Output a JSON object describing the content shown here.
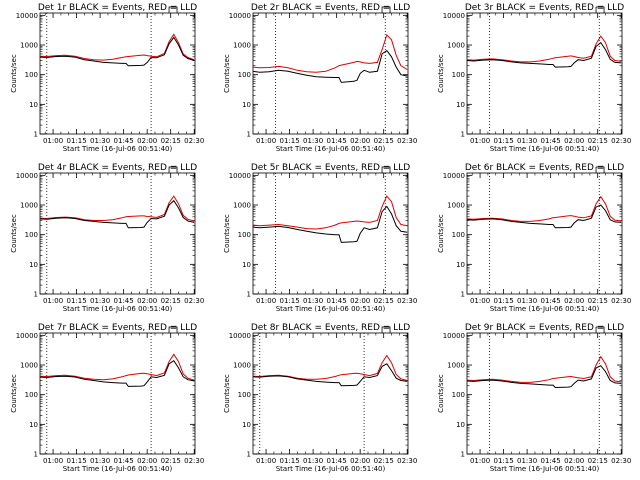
{
  "figure": {
    "colors": {
      "events": "#000000",
      "lld": "#e00000",
      "axis": "#000000",
      "background": "#ffffff"
    }
  },
  "chart_data": [
    {
      "type": "line",
      "title": "Det 1r BLACK = Events, RED = LLD",
      "xlabel": "Start Time (16-Jul-06 00:51:40)",
      "ylabel": "Counts/sec",
      "x_ticks": [
        "01:00",
        "01:15",
        "01:30",
        "01:45",
        "02:00",
        "02:15",
        "02:30"
      ],
      "y_ticks": [
        "1",
        "10",
        "100",
        "1000",
        "10000"
      ],
      "xlim_minutes": [
        51.67,
        150.5
      ],
      "ylim": [
        1,
        12000
      ],
      "yscale": "log",
      "vlines_minutes": [
        56,
        122.5
      ],
      "x_minutes": [
        51.67,
        56,
        62,
        68,
        74,
        80,
        86,
        92,
        98,
        104,
        106.5,
        108,
        116,
        118,
        120,
        122.5,
        126,
        131,
        134,
        137,
        140,
        143,
        146,
        150
      ],
      "series": [
        {
          "name": "LLD",
          "color": "#e00000",
          "values": [
            420,
            410,
            440,
            450,
            420,
            350,
            320,
            310,
            330,
            380,
            400,
            410,
            450,
            460,
            440,
            420,
            400,
            520,
            1300,
            2300,
            1200,
            500,
            380,
            320
          ]
        },
        {
          "name": "Events",
          "color": "#000000",
          "values": [
            390,
            380,
            410,
            420,
            390,
            320,
            290,
            260,
            250,
            240,
            240,
            200,
            205,
            210,
            260,
            380,
            370,
            470,
            1100,
            1800,
            1000,
            450,
            350,
            300
          ]
        }
      ]
    },
    {
      "type": "line",
      "title": "Det 2r BLACK = Events, RED = LLD",
      "xlabel": "Start Time (16-Jul-06 00:51:40)",
      "ylabel": "Counts/sec",
      "x_ticks": [
        "01:00",
        "01:15",
        "01:30",
        "01:45",
        "02:00",
        "02:15",
        "02:30"
      ],
      "y_ticks": [
        "1",
        "10",
        "100",
        "1000",
        "10000"
      ],
      "xlim_minutes": [
        51.67,
        150.5
      ],
      "ylim": [
        1,
        12000
      ],
      "yscale": "log",
      "vlines_minutes": [
        66,
        136
      ],
      "x_minutes": [
        51.67,
        56,
        62,
        68,
        74,
        80,
        86,
        92,
        98,
        104,
        106.5,
        108,
        116,
        118,
        120,
        122.5,
        126,
        131,
        134,
        137,
        140,
        143,
        146,
        150
      ],
      "series": [
        {
          "name": "LLD",
          "color": "#e00000",
          "values": [
            180,
            170,
            175,
            190,
            170,
            140,
            125,
            120,
            130,
            170,
            200,
            210,
            260,
            280,
            270,
            250,
            240,
            260,
            700,
            2200,
            1500,
            450,
            200,
            150
          ]
        },
        {
          "name": "Events",
          "color": "#000000",
          "values": [
            130,
            120,
            125,
            140,
            130,
            110,
            95,
            85,
            82,
            80,
            80,
            55,
            60,
            65,
            110,
            140,
            120,
            130,
            500,
            650,
            400,
            180,
            100,
            90
          ]
        }
      ]
    },
    {
      "type": "line",
      "title": "Det 3r BLACK = Events, RED = LLD",
      "xlabel": "Start Time (16-Jul-06 00:51:40)",
      "ylabel": "Counts/sec",
      "x_ticks": [
        "01:00",
        "01:15",
        "01:30",
        "01:45",
        "02:00",
        "02:15",
        "02:30"
      ],
      "y_ticks": [
        "1",
        "10",
        "100",
        "1000",
        "10000"
      ],
      "xlim_minutes": [
        51.67,
        150.5
      ],
      "ylim": [
        1,
        12000
      ],
      "yscale": "log",
      "vlines_minutes": [
        66,
        136
      ],
      "x_minutes": [
        51.67,
        56,
        62,
        68,
        74,
        80,
        86,
        92,
        98,
        104,
        106.5,
        108,
        116,
        118,
        120,
        122.5,
        126,
        131,
        134,
        137,
        140,
        143,
        146,
        150
      ],
      "series": [
        {
          "name": "LLD",
          "color": "#e00000",
          "values": [
            320,
            310,
            330,
            340,
            320,
            290,
            270,
            270,
            290,
            330,
            360,
            370,
            420,
            430,
            410,
            380,
            360,
            420,
            1100,
            2000,
            1200,
            420,
            300,
            280
          ]
        },
        {
          "name": "Events",
          "color": "#000000",
          "values": [
            300,
            290,
            310,
            320,
            300,
            270,
            250,
            240,
            230,
            220,
            220,
            180,
            185,
            190,
            250,
            320,
            300,
            360,
            900,
            1200,
            700,
            330,
            260,
            250
          ]
        }
      ]
    },
    {
      "type": "line",
      "title": "Det 4r BLACK = Events, RED = LLD",
      "xlabel": "Start Time (16-Jul-06 00:51:40)",
      "ylabel": "Counts/sec",
      "x_ticks": [
        "01:00",
        "01:15",
        "01:30",
        "01:45",
        "02:00",
        "02:15",
        "02:30"
      ],
      "y_ticks": [
        "1",
        "10",
        "100",
        "1000",
        "10000"
      ],
      "xlim_minutes": [
        51.67,
        150.5
      ],
      "ylim": [
        1,
        12000
      ],
      "yscale": "log",
      "vlines_minutes": [
        56,
        122.5
      ],
      "x_minutes": [
        51.67,
        56,
        62,
        68,
        74,
        80,
        86,
        92,
        98,
        104,
        106.5,
        108,
        116,
        118,
        120,
        122.5,
        126,
        131,
        134,
        137,
        140,
        143,
        146,
        150
      ],
      "series": [
        {
          "name": "LLD",
          "color": "#e00000",
          "values": [
            360,
            350,
            380,
            390,
            370,
            320,
            300,
            300,
            320,
            370,
            400,
            410,
            430,
            430,
            410,
            400,
            380,
            480,
            1200,
            2000,
            1100,
            450,
            330,
            290
          ]
        },
        {
          "name": "Events",
          "color": "#000000",
          "values": [
            340,
            330,
            360,
            370,
            350,
            300,
            280,
            260,
            250,
            240,
            240,
            170,
            175,
            180,
            260,
            350,
            340,
            420,
            1000,
            1400,
            800,
            380,
            290,
            260
          ]
        }
      ]
    },
    {
      "type": "line",
      "title": "Det 5r BLACK = Events, RED = LLD",
      "xlabel": "Start Time (16-Jul-06 00:51:40)",
      "ylabel": "Counts/sec",
      "x_ticks": [
        "01:00",
        "01:15",
        "01:30",
        "01:45",
        "02:00",
        "02:15",
        "02:30"
      ],
      "y_ticks": [
        "1",
        "10",
        "100",
        "1000",
        "10000"
      ],
      "xlim_minutes": [
        51.67,
        150.5
      ],
      "ylim": [
        1,
        12000
      ],
      "yscale": "log",
      "vlines_minutes": [
        66,
        136
      ],
      "x_minutes": [
        51.67,
        56,
        62,
        68,
        74,
        80,
        86,
        92,
        98,
        104,
        106.5,
        108,
        116,
        118,
        120,
        122.5,
        126,
        131,
        134,
        137,
        140,
        143,
        146,
        150
      ],
      "series": [
        {
          "name": "LLD",
          "color": "#e00000",
          "values": [
            210,
            200,
            210,
            220,
            200,
            180,
            160,
            155,
            170,
            210,
            240,
            250,
            280,
            290,
            280,
            270,
            260,
            300,
            900,
            2000,
            1300,
            380,
            220,
            200
          ]
        },
        {
          "name": "Events",
          "color": "#000000",
          "values": [
            180,
            170,
            180,
            190,
            175,
            150,
            130,
            115,
            105,
            100,
            100,
            55,
            58,
            60,
            110,
            170,
            150,
            170,
            600,
            900,
            500,
            200,
            130,
            120
          ]
        }
      ]
    },
    {
      "type": "line",
      "title": "Det 6r BLACK = Events, RED = LLD",
      "xlabel": "Start Time (16-Jul-06 00:51:40)",
      "ylabel": "Counts/sec",
      "x_ticks": [
        "01:00",
        "01:15",
        "01:30",
        "01:45",
        "02:00",
        "02:15",
        "02:30"
      ],
      "y_ticks": [
        "1",
        "10",
        "100",
        "1000",
        "10000"
      ],
      "xlim_minutes": [
        51.67,
        150.5
      ],
      "ylim": [
        1,
        12000
      ],
      "yscale": "log",
      "vlines_minutes": [
        66,
        136
      ],
      "x_minutes": [
        51.67,
        56,
        62,
        68,
        74,
        80,
        86,
        92,
        98,
        104,
        106.5,
        108,
        116,
        118,
        120,
        122.5,
        126,
        131,
        134,
        137,
        140,
        143,
        146,
        150
      ],
      "series": [
        {
          "name": "LLD",
          "color": "#e00000",
          "values": [
            340,
            330,
            350,
            360,
            340,
            300,
            280,
            280,
            300,
            340,
            370,
            380,
            430,
            440,
            420,
            390,
            370,
            430,
            1100,
            1900,
            1100,
            420,
            310,
            290
          ]
        },
        {
          "name": "Events",
          "color": "#000000",
          "values": [
            320,
            310,
            330,
            340,
            320,
            280,
            260,
            240,
            230,
            220,
            220,
            170,
            175,
            180,
            250,
            320,
            300,
            360,
            850,
            1000,
            650,
            320,
            270,
            260
          ]
        }
      ]
    },
    {
      "type": "line",
      "title": "Det 7r BLACK = Events, RED = LLD",
      "xlabel": "Start Time (16-Jul-06 00:51:40)",
      "ylabel": "Counts/sec",
      "x_ticks": [
        "01:00",
        "01:15",
        "01:30",
        "01:45",
        "02:00",
        "02:15",
        "02:30"
      ],
      "y_ticks": [
        "1",
        "10",
        "100",
        "1000",
        "10000"
      ],
      "xlim_minutes": [
        51.67,
        150.5
      ],
      "ylim": [
        1,
        12000
      ],
      "yscale": "log",
      "vlines_minutes": [
        56,
        122.5
      ],
      "x_minutes": [
        51.67,
        56,
        62,
        68,
        74,
        80,
        86,
        92,
        98,
        104,
        106.5,
        108,
        116,
        118,
        120,
        122.5,
        126,
        131,
        134,
        137,
        140,
        143,
        146,
        150
      ],
      "series": [
        {
          "name": "LLD",
          "color": "#e00000",
          "values": [
            420,
            410,
            440,
            450,
            420,
            360,
            330,
            320,
            340,
            400,
            440,
            460,
            520,
            530,
            510,
            480,
            440,
            540,
            1300,
            2300,
            1300,
            500,
            360,
            310
          ]
        },
        {
          "name": "Events",
          "color": "#000000",
          "values": [
            390,
            380,
            410,
            420,
            395,
            330,
            300,
            270,
            255,
            245,
            245,
            190,
            195,
            200,
            270,
            400,
            380,
            450,
            1100,
            1400,
            800,
            400,
            320,
            290
          ]
        }
      ]
    },
    {
      "type": "line",
      "title": "Det 8r BLACK = Events, RED = LLD",
      "xlabel": "Start Time (16-Jul-06 00:51:40)",
      "ylabel": "Counts/sec",
      "x_ticks": [
        "01:00",
        "01:15",
        "01:30",
        "01:45",
        "02:00",
        "02:15",
        "02:30"
      ],
      "y_ticks": [
        "1",
        "10",
        "100",
        "1000",
        "10000"
      ],
      "xlim_minutes": [
        51.67,
        150.5
      ],
      "ylim": [
        1,
        12000
      ],
      "yscale": "log",
      "vlines_minutes": [
        56,
        122.5
      ],
      "x_minutes": [
        51.67,
        56,
        62,
        68,
        74,
        80,
        86,
        92,
        98,
        104,
        106.5,
        108,
        116,
        118,
        120,
        122.5,
        126,
        131,
        134,
        137,
        140,
        143,
        146,
        150
      ],
      "series": [
        {
          "name": "LLD",
          "color": "#e00000",
          "values": [
            420,
            410,
            440,
            450,
            420,
            360,
            330,
            330,
            350,
            410,
            450,
            470,
            520,
            530,
            510,
            480,
            440,
            520,
            1200,
            2100,
            1200,
            480,
            340,
            300
          ]
        },
        {
          "name": "Events",
          "color": "#000000",
          "values": [
            400,
            390,
            420,
            430,
            400,
            340,
            310,
            280,
            265,
            255,
            255,
            200,
            205,
            210,
            280,
            400,
            380,
            440,
            900,
            1100,
            650,
            360,
            300,
            280
          ]
        }
      ]
    },
    {
      "type": "line",
      "title": "Det 9r BLACK = Events, RED = LLD",
      "xlabel": "Start Time (16-Jul-06 00:51:40)",
      "ylabel": "Counts/sec",
      "x_ticks": [
        "01:00",
        "01:15",
        "01:30",
        "01:45",
        "02:00",
        "02:15",
        "02:30"
      ],
      "y_ticks": [
        "1",
        "10",
        "100",
        "1000",
        "10000"
      ],
      "xlim_minutes": [
        51.67,
        150.5
      ],
      "ylim": [
        1,
        12000
      ],
      "yscale": "log",
      "vlines_minutes": [
        66,
        136
      ],
      "x_minutes": [
        51.67,
        56,
        62,
        68,
        74,
        80,
        86,
        92,
        98,
        104,
        106.5,
        108,
        116,
        118,
        120,
        122.5,
        126,
        131,
        134,
        137,
        140,
        143,
        146,
        150
      ],
      "series": [
        {
          "name": "LLD",
          "color": "#e00000",
          "values": [
            310,
            300,
            320,
            330,
            310,
            280,
            260,
            260,
            280,
            320,
            350,
            360,
            400,
            410,
            390,
            370,
            350,
            400,
            1000,
            1900,
            1100,
            400,
            290,
            270
          ]
        },
        {
          "name": "Events",
          "color": "#000000",
          "values": [
            290,
            280,
            300,
            310,
            290,
            260,
            240,
            230,
            220,
            210,
            210,
            175,
            180,
            185,
            240,
            310,
            290,
            340,
            800,
            950,
            600,
            300,
            250,
            240
          ]
        }
      ]
    }
  ]
}
